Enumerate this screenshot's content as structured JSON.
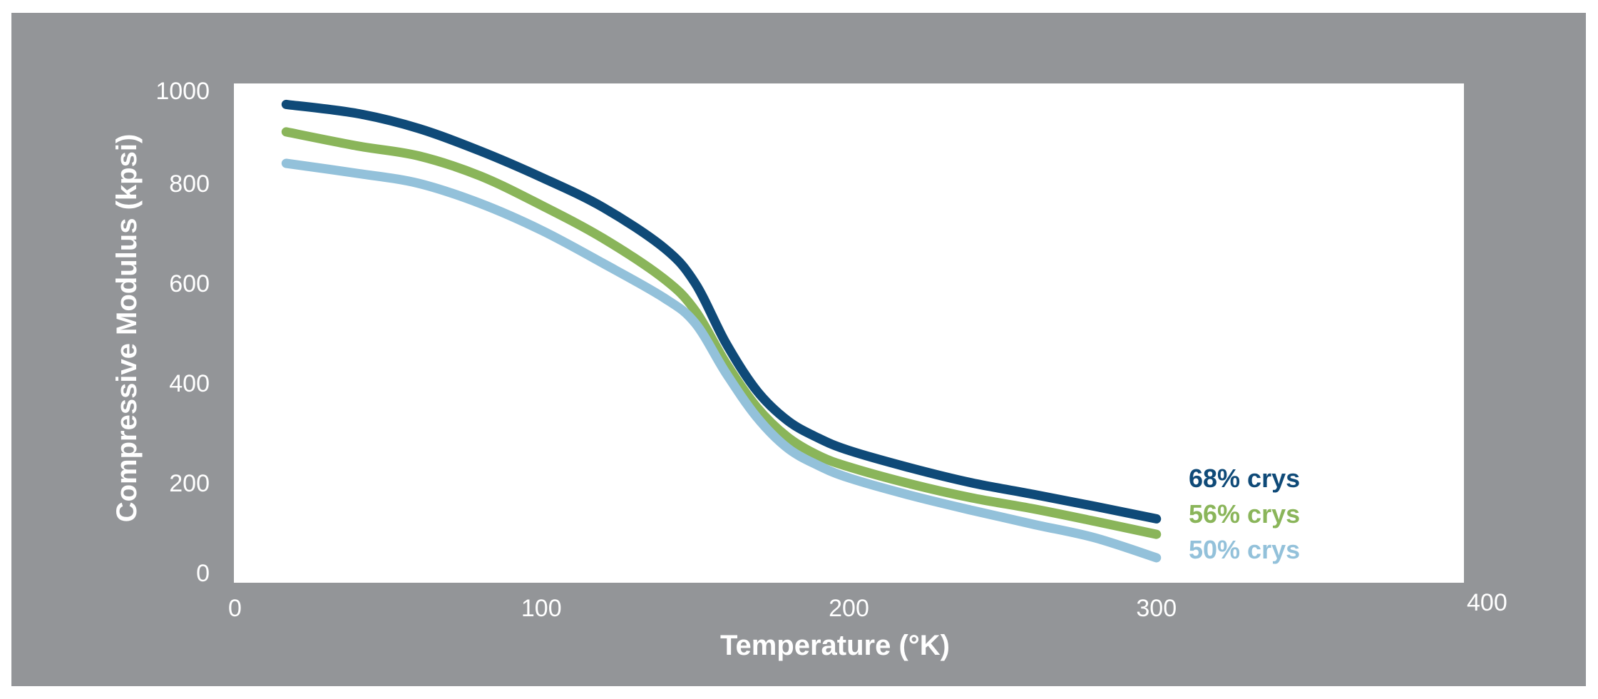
{
  "chart_data": {
    "type": "line",
    "title": "",
    "xlabel": "Temperature (°K)",
    "ylabel": "Compressive Modulus (kpsi)",
    "xlim": [
      0,
      400
    ],
    "ylim": [
      0,
      1000
    ],
    "x_ticks": [
      "0",
      "100",
      "200",
      "300",
      "400"
    ],
    "y_ticks": [
      "0",
      "200",
      "400",
      "600",
      "800",
      "1000"
    ],
    "grid": false,
    "legend": "inline-right",
    "series": [
      {
        "name": "68% crys",
        "color": "#0f4a78",
        "points": [
          [
            17,
            958
          ],
          [
            40,
            940
          ],
          [
            60,
            910
          ],
          [
            80,
            865
          ],
          [
            100,
            812
          ],
          [
            120,
            752
          ],
          [
            140,
            670
          ],
          [
            150,
            600
          ],
          [
            160,
            480
          ],
          [
            170,
            385
          ],
          [
            180,
            325
          ],
          [
            190,
            290
          ],
          [
            200,
            265
          ],
          [
            220,
            230
          ],
          [
            240,
            200
          ],
          [
            260,
            177
          ],
          [
            280,
            153
          ],
          [
            300,
            128
          ]
        ]
      },
      {
        "name": "56% crys",
        "color": "#8ab55a",
        "points": [
          [
            17,
            903
          ],
          [
            40,
            875
          ],
          [
            60,
            855
          ],
          [
            80,
            815
          ],
          [
            100,
            756
          ],
          [
            120,
            690
          ],
          [
            140,
            608
          ],
          [
            150,
            545
          ],
          [
            160,
            440
          ],
          [
            170,
            352
          ],
          [
            180,
            292
          ],
          [
            190,
            255
          ],
          [
            200,
            232
          ],
          [
            220,
            198
          ],
          [
            240,
            170
          ],
          [
            260,
            148
          ],
          [
            280,
            123
          ],
          [
            300,
            97
          ]
        ]
      },
      {
        "name": "50% crys",
        "color": "#93c1da",
        "points": [
          [
            17,
            840
          ],
          [
            40,
            820
          ],
          [
            60,
            800
          ],
          [
            80,
            760
          ],
          [
            100,
            706
          ],
          [
            120,
            640
          ],
          [
            140,
            570
          ],
          [
            150,
            520
          ],
          [
            160,
            420
          ],
          [
            170,
            332
          ],
          [
            180,
            270
          ],
          [
            190,
            235
          ],
          [
            200,
            210
          ],
          [
            220,
            175
          ],
          [
            240,
            145
          ],
          [
            260,
            117
          ],
          [
            280,
            90
          ],
          [
            300,
            50
          ]
        ]
      }
    ]
  }
}
